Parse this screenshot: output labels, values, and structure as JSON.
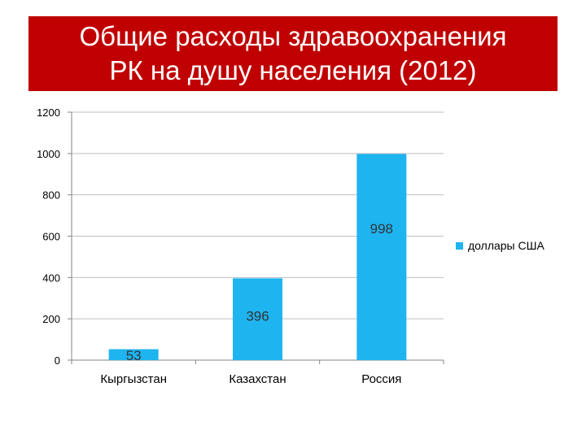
{
  "title_lines": [
    "Общие расходы здравоохранения",
    "РК на душу населения (2012)"
  ],
  "colors": {
    "banner": "#c00000",
    "bar": "#1eb4f0",
    "grid": "#bfbfbf"
  },
  "chart_data": {
    "type": "bar",
    "title": "Общие расходы здравоохранения РК на душу населения (2012)",
    "categories": [
      "Кыргызстан",
      "Казахстан",
      "Россия"
    ],
    "series": [
      {
        "name": "доллары США",
        "values": [
          53,
          396,
          998
        ],
        "labels": [
          "53",
          "396",
          "998"
        ]
      }
    ],
    "xlabel": "",
    "ylabel": "",
    "ylim": [
      0,
      1200
    ],
    "yticks": [
      "0",
      "200",
      "400",
      "600",
      "800",
      "1000",
      "1200"
    ],
    "grid": true,
    "legend": "right"
  }
}
